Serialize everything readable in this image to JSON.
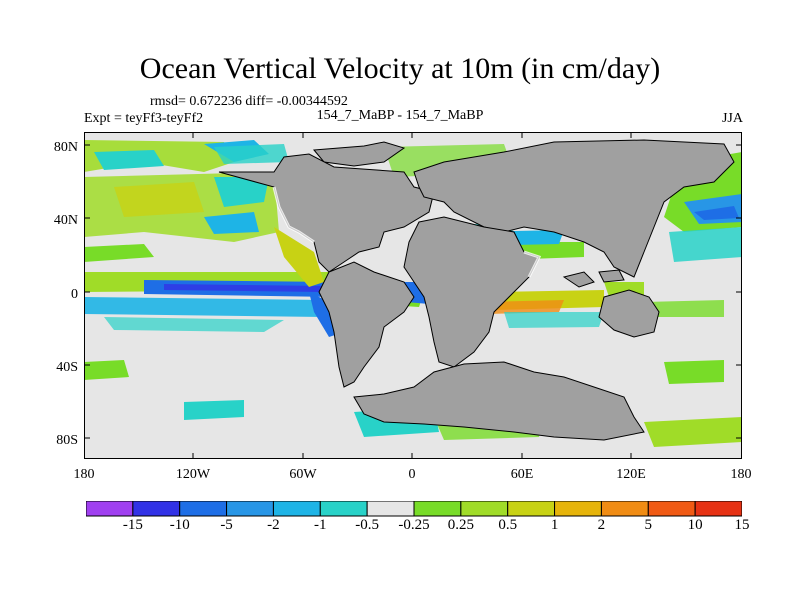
{
  "title": "Ocean Vertical Velocity at 10m (in cm/day)",
  "subtitle": {
    "stats": "rmsd= 0.672236 diff= -0.00344592",
    "expt": "Expt = teyFf3-teyFf2",
    "center": "154_7_MaBP - 154_7_MaBP",
    "season": "JJA"
  },
  "map": {
    "land_color": "#a0a0a0",
    "ocean_neutral_color": "#e6e6e6",
    "y_axis_labels": [
      "80N",
      "40N",
      "0",
      "40S",
      "80S"
    ],
    "x_axis_labels": [
      "180",
      "120W",
      "60W",
      "0",
      "60E",
      "120E",
      "180"
    ]
  },
  "colorbar": {
    "colors": [
      "#a040f0",
      "#3232e6",
      "#1e6ee6",
      "#2896e6",
      "#1eb4e6",
      "#28d2c8",
      "#e6e6e6",
      "#78dc28",
      "#a0dc28",
      "#c8d214",
      "#e6b40a",
      "#f08c14",
      "#f05a14",
      "#e63214"
    ],
    "labels": [
      "-15",
      "-10",
      "-5",
      "-2",
      "-1",
      "-0.5",
      "-0.25",
      "0.25",
      "0.5",
      "1",
      "2",
      "5",
      "10",
      "15"
    ]
  }
}
